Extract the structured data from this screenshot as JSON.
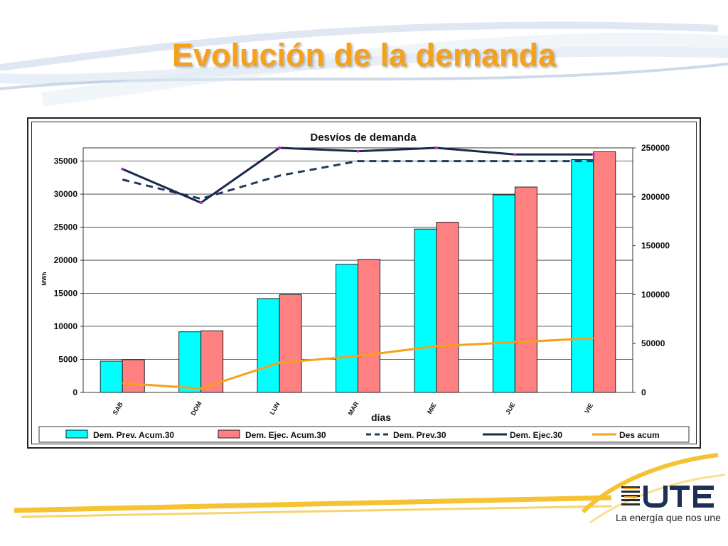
{
  "slide": {
    "title": "Evolución de la demanda",
    "slogan": "La energía que nos une",
    "logo_text": "UTE"
  },
  "colors": {
    "title": "#f5a11c",
    "bar_prev": "#00ffff",
    "bar_ejec": "#ff8080",
    "line_prev": "#1f3a5f",
    "line_ejec": "#1a2a4a",
    "line_des": "#f7a01b"
  },
  "chart_data": {
    "type": "bar",
    "title": "Desvíos de demanda",
    "xlabel": "días",
    "ylabel": "MWh",
    "categories": [
      "SAB",
      "DOM",
      "LUN",
      "MAR",
      "MIE",
      "JUE",
      "VIE"
    ],
    "ylim": [
      0,
      37000
    ],
    "yticks": [
      0,
      5000,
      10000,
      15000,
      20000,
      25000,
      30000,
      35000
    ],
    "y2lim": [
      0,
      250000
    ],
    "y2ticks": [
      0,
      50000,
      100000,
      150000,
      200000,
      250000
    ],
    "grid": true,
    "legend_position": "bottom",
    "series": [
      {
        "name": "Dem. Prev. Acum.30",
        "kind": "bar",
        "axis": "right",
        "values": [
          32000,
          62000,
          96000,
          131000,
          167000,
          202000,
          238000
        ]
      },
      {
        "name": "Dem. Ejec. Acum.30",
        "kind": "bar",
        "axis": "right",
        "values": [
          33500,
          63000,
          100000,
          136000,
          174000,
          210000,
          246000
        ]
      },
      {
        "name": "Dem. Prev.30",
        "kind": "line",
        "style": "dashed",
        "axis": "left",
        "values": [
          32200,
          29300,
          32800,
          35000,
          35000,
          35000,
          35000
        ]
      },
      {
        "name": "Dem. Ejec.30",
        "kind": "line",
        "style": "solid",
        "axis": "left",
        "values": [
          33800,
          28700,
          37000,
          36500,
          37000,
          36000,
          36000
        ]
      },
      {
        "name": "Des acum",
        "kind": "line",
        "style": "solid",
        "axis": "left",
        "values": [
          1400,
          600,
          4500,
          5500,
          7000,
          7600,
          8200
        ]
      }
    ]
  }
}
